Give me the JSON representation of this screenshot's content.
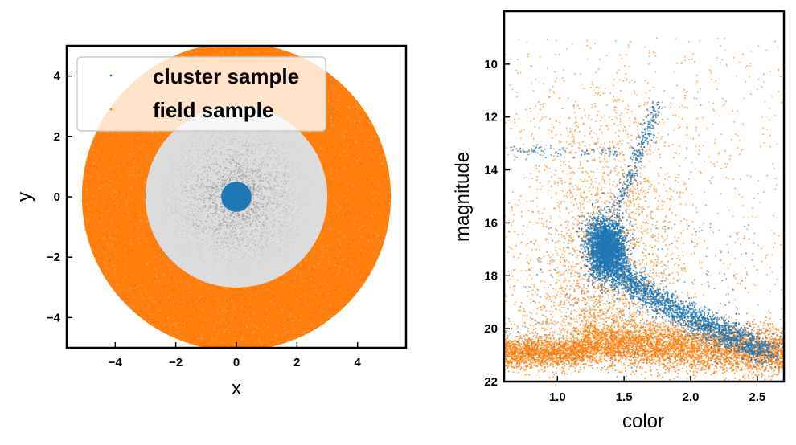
{
  "colors": {
    "cluster": "#1f77b4",
    "field": "#ff7f0e",
    "annulus_gray": "#b0b0b0",
    "legend_frame": "#cccccc"
  },
  "chart_data": [
    {
      "type": "scatter",
      "panel": "left",
      "xlabel": "x",
      "ylabel": "y",
      "xlim": [
        -5.6,
        5.6
      ],
      "ylim": [
        -5.0,
        5.0
      ],
      "xticks": [
        -4,
        -2,
        0,
        2,
        4
      ],
      "yticks": [
        -4,
        -2,
        0,
        2,
        4
      ],
      "xtick_labels": [
        "−4",
        "−2",
        "0",
        "2",
        "4"
      ],
      "ytick_labels": [
        "−4",
        "−2",
        "0",
        "2",
        "4"
      ],
      "grid": false,
      "legend": {
        "placement": "upper-left",
        "entries": [
          "cluster sample",
          "field sample"
        ]
      },
      "series": [
        {
          "name": "cluster sample",
          "color": "#1f77b4",
          "region": "disk",
          "center": [
            0,
            0
          ],
          "radius": 0.5
        },
        {
          "name": "field sample",
          "color": "#ff7f0e",
          "region": "annulus",
          "center": [
            0,
            0
          ],
          "r_inner": 3.0,
          "r_outer": 5.1
        }
      ],
      "unselected_stars": {
        "color": "gray",
        "region": "disk",
        "center": [
          0,
          0
        ],
        "radius": 3.0
      }
    },
    {
      "type": "scatter",
      "panel": "right",
      "xlabel": "color",
      "ylabel": "magnitude",
      "xlim": [
        0.6,
        2.7
      ],
      "ylim": [
        22.0,
        8.0
      ],
      "y_inverted": true,
      "xticks": [
        1.0,
        1.5,
        2.0,
        2.5
      ],
      "yticks": [
        10,
        12,
        14,
        16,
        18,
        20,
        22
      ],
      "xtick_labels": [
        "1.0",
        "1.5",
        "2.0",
        "2.5"
      ],
      "ytick_labels": [
        "10",
        "12",
        "14",
        "16",
        "18",
        "20",
        "22"
      ],
      "grid": false,
      "series": [
        {
          "name": "field",
          "color": "#ff7f0e",
          "features": {
            "dense_band": {
              "color_range": [
                0.6,
                2.7
              ],
              "magnitude_range": [
                19.5,
                21.5
              ]
            },
            "scattered_envelope": {
              "color_range": [
                0.6,
                2.7
              ],
              "magnitude_range": [
                9.0,
                21.0
              ]
            }
          }
        },
        {
          "name": "cluster",
          "color": "#1f77b4",
          "features": {
            "turnoff_clump": {
              "color": 1.37,
              "magnitude": 17.0
            },
            "main_sequence": [
              [
                1.28,
                16.2
              ],
              [
                1.45,
                17.8
              ],
              [
                1.7,
                18.8
              ],
              [
                2.0,
                19.6
              ],
              [
                2.3,
                20.3
              ],
              [
                2.6,
                21.0
              ]
            ],
            "red_giant_branch": [
              [
                1.45,
                15.5
              ],
              [
                1.55,
                14.2
              ],
              [
                1.65,
                12.8
              ],
              [
                1.75,
                11.5
              ]
            ],
            "horizontal_branch": {
              "color_range": [
                0.65,
                1.45
              ],
              "magnitude": 13.3
            }
          }
        }
      ]
    }
  ]
}
